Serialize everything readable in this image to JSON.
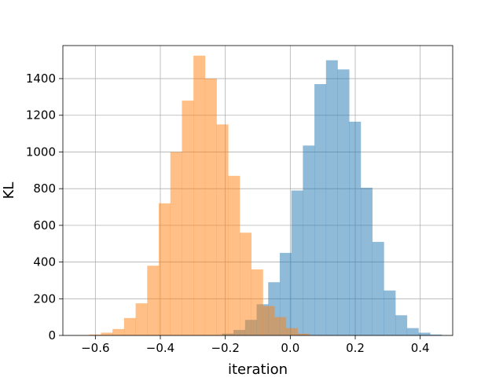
{
  "chart_data": {
    "type": "bar",
    "subtype": "overlaid histogram",
    "title": "",
    "xlabel": "iteration",
    "ylabel": "KL",
    "xlim": [
      -0.7,
      0.5
    ],
    "ylim": [
      0,
      1580
    ],
    "grid": true,
    "legend": "none",
    "xticks": [
      -0.6,
      -0.4,
      -0.2,
      0.0,
      0.2,
      0.4
    ],
    "xtick_labels": [
      "−0.6",
      "−0.4",
      "−0.2",
      "0.0",
      "0.2",
      "0.4"
    ],
    "yticks": [
      0,
      200,
      400,
      600,
      800,
      1000,
      1200,
      1400
    ],
    "ytick_labels": [
      "0",
      "200",
      "400",
      "600",
      "800",
      "1000",
      "1200",
      "1400"
    ],
    "series": [
      {
        "color": "#1f77b4",
        "alpha": 0.5,
        "bin_width": 0.0356,
        "bin_edges_start": -0.246,
        "counts": [
          2,
          10,
          30,
          85,
          170,
          290,
          450,
          790,
          1035,
          1370,
          1500,
          1450,
          1165,
          805,
          510,
          245,
          110,
          40,
          15,
          5
        ]
      },
      {
        "color": "#ff7f0e",
        "alpha": 0.5,
        "bin_width": 0.0356,
        "bin_edges_start": -0.654,
        "counts": [
          2,
          5,
          15,
          35,
          95,
          175,
          380,
          720,
          1000,
          1280,
          1525,
          1400,
          1150,
          870,
          560,
          360,
          160,
          100,
          40,
          10,
          2
        ]
      }
    ]
  }
}
